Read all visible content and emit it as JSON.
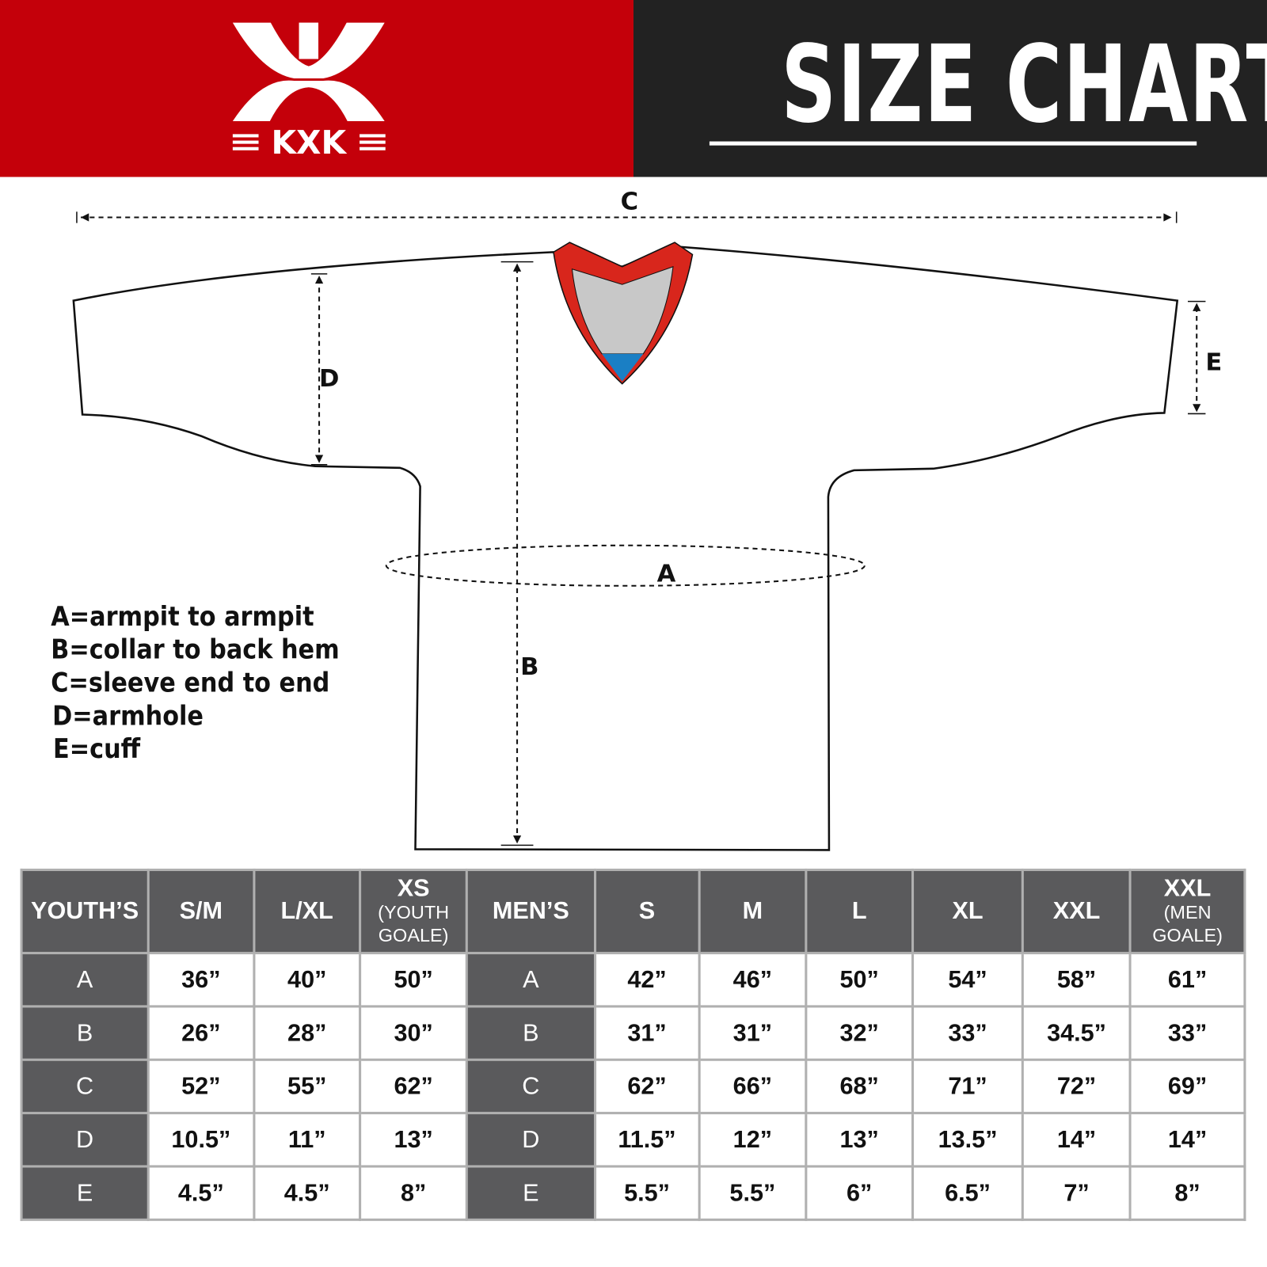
{
  "brand": {
    "logo_text": "KXK",
    "colors": {
      "red": "#c4000a",
      "dark": "#222222"
    }
  },
  "header": {
    "title": "SIZE CHART"
  },
  "diagram": {
    "labels": {
      "a": "A",
      "b": "B",
      "c": "C",
      "d": "D",
      "e": "E"
    },
    "collar_colors": {
      "trim": "#d8261c",
      "inner": "#c8c8c8",
      "tip": "#1a7fc4"
    }
  },
  "legend": [
    "A=armpit to armpit",
    "B=collar to back hem",
    "C=sleeve end to end",
    "D=armhole",
    "E=cuff"
  ],
  "table": {
    "youth_header": "YOUTH’S",
    "men_header": "MEN’S",
    "youth_sizes": [
      {
        "main": "S/M",
        "sub": ""
      },
      {
        "main": "L/XL",
        "sub": ""
      },
      {
        "main": "XS",
        "sub": "(YOUTH GOALE)"
      }
    ],
    "men_sizes": [
      {
        "main": "S",
        "sub": ""
      },
      {
        "main": "M",
        "sub": ""
      },
      {
        "main": "L",
        "sub": ""
      },
      {
        "main": "XL",
        "sub": ""
      },
      {
        "main": "XXL",
        "sub": ""
      },
      {
        "main": "XXL",
        "sub": "(MEN GOALE)"
      }
    ],
    "rows": [
      {
        "label": "A",
        "youth": [
          "36”",
          "40”",
          "50”"
        ],
        "men": [
          "42”",
          "46”",
          "50”",
          "54”",
          "58”",
          "61”"
        ]
      },
      {
        "label": "B",
        "youth": [
          "26”",
          "28”",
          "30”"
        ],
        "men": [
          "31”",
          "31”",
          "32”",
          "33”",
          "34.5”",
          "33”"
        ]
      },
      {
        "label": "C",
        "youth": [
          "52”",
          "55”",
          "62”"
        ],
        "men": [
          "62”",
          "66”",
          "68”",
          "71”",
          "72”",
          "69”"
        ]
      },
      {
        "label": "D",
        "youth": [
          "10.5”",
          "11”",
          "13”"
        ],
        "men": [
          "11.5”",
          "12”",
          "13”",
          "13.5”",
          "14”",
          "14”"
        ]
      },
      {
        "label": "E",
        "youth": [
          "4.5”",
          "4.5”",
          "8”"
        ],
        "men": [
          "5.5”",
          "5.5”",
          "6”",
          "6.5”",
          "7”",
          "8”"
        ]
      }
    ]
  }
}
